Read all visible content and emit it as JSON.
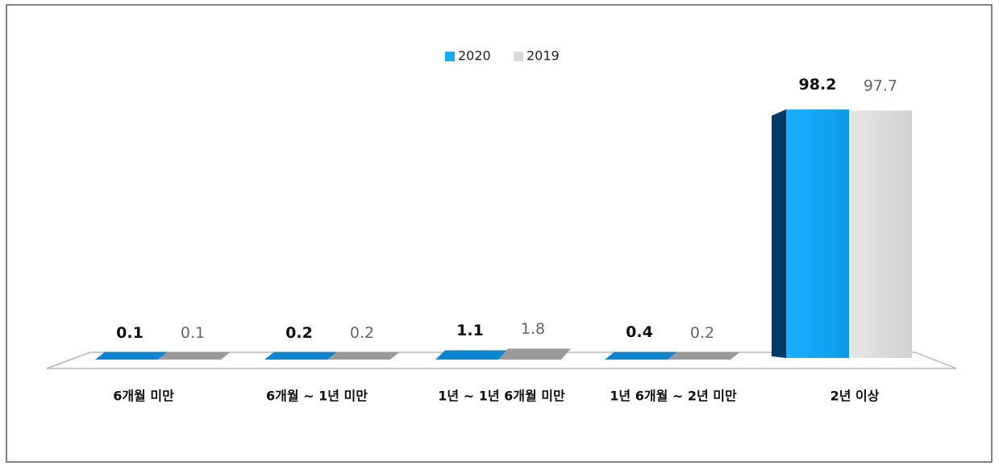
{
  "chart_data": {
    "type": "bar",
    "categories": [
      "6개월 미만",
      "6개월 ~ 1년 미만",
      "1년 ~ 1년 6개월 미만",
      "1년 6개월 ~ 2년 미만",
      "2년 이상"
    ],
    "series": [
      {
        "name": "2020",
        "color": "#16a9f5",
        "values": [
          0.1,
          0.2,
          1.1,
          0.4,
          98.2
        ]
      },
      {
        "name": "2019",
        "color": "#d9d9d9",
        "values": [
          0.1,
          0.2,
          1.8,
          0.2,
          97.7
        ]
      }
    ]
  }
}
